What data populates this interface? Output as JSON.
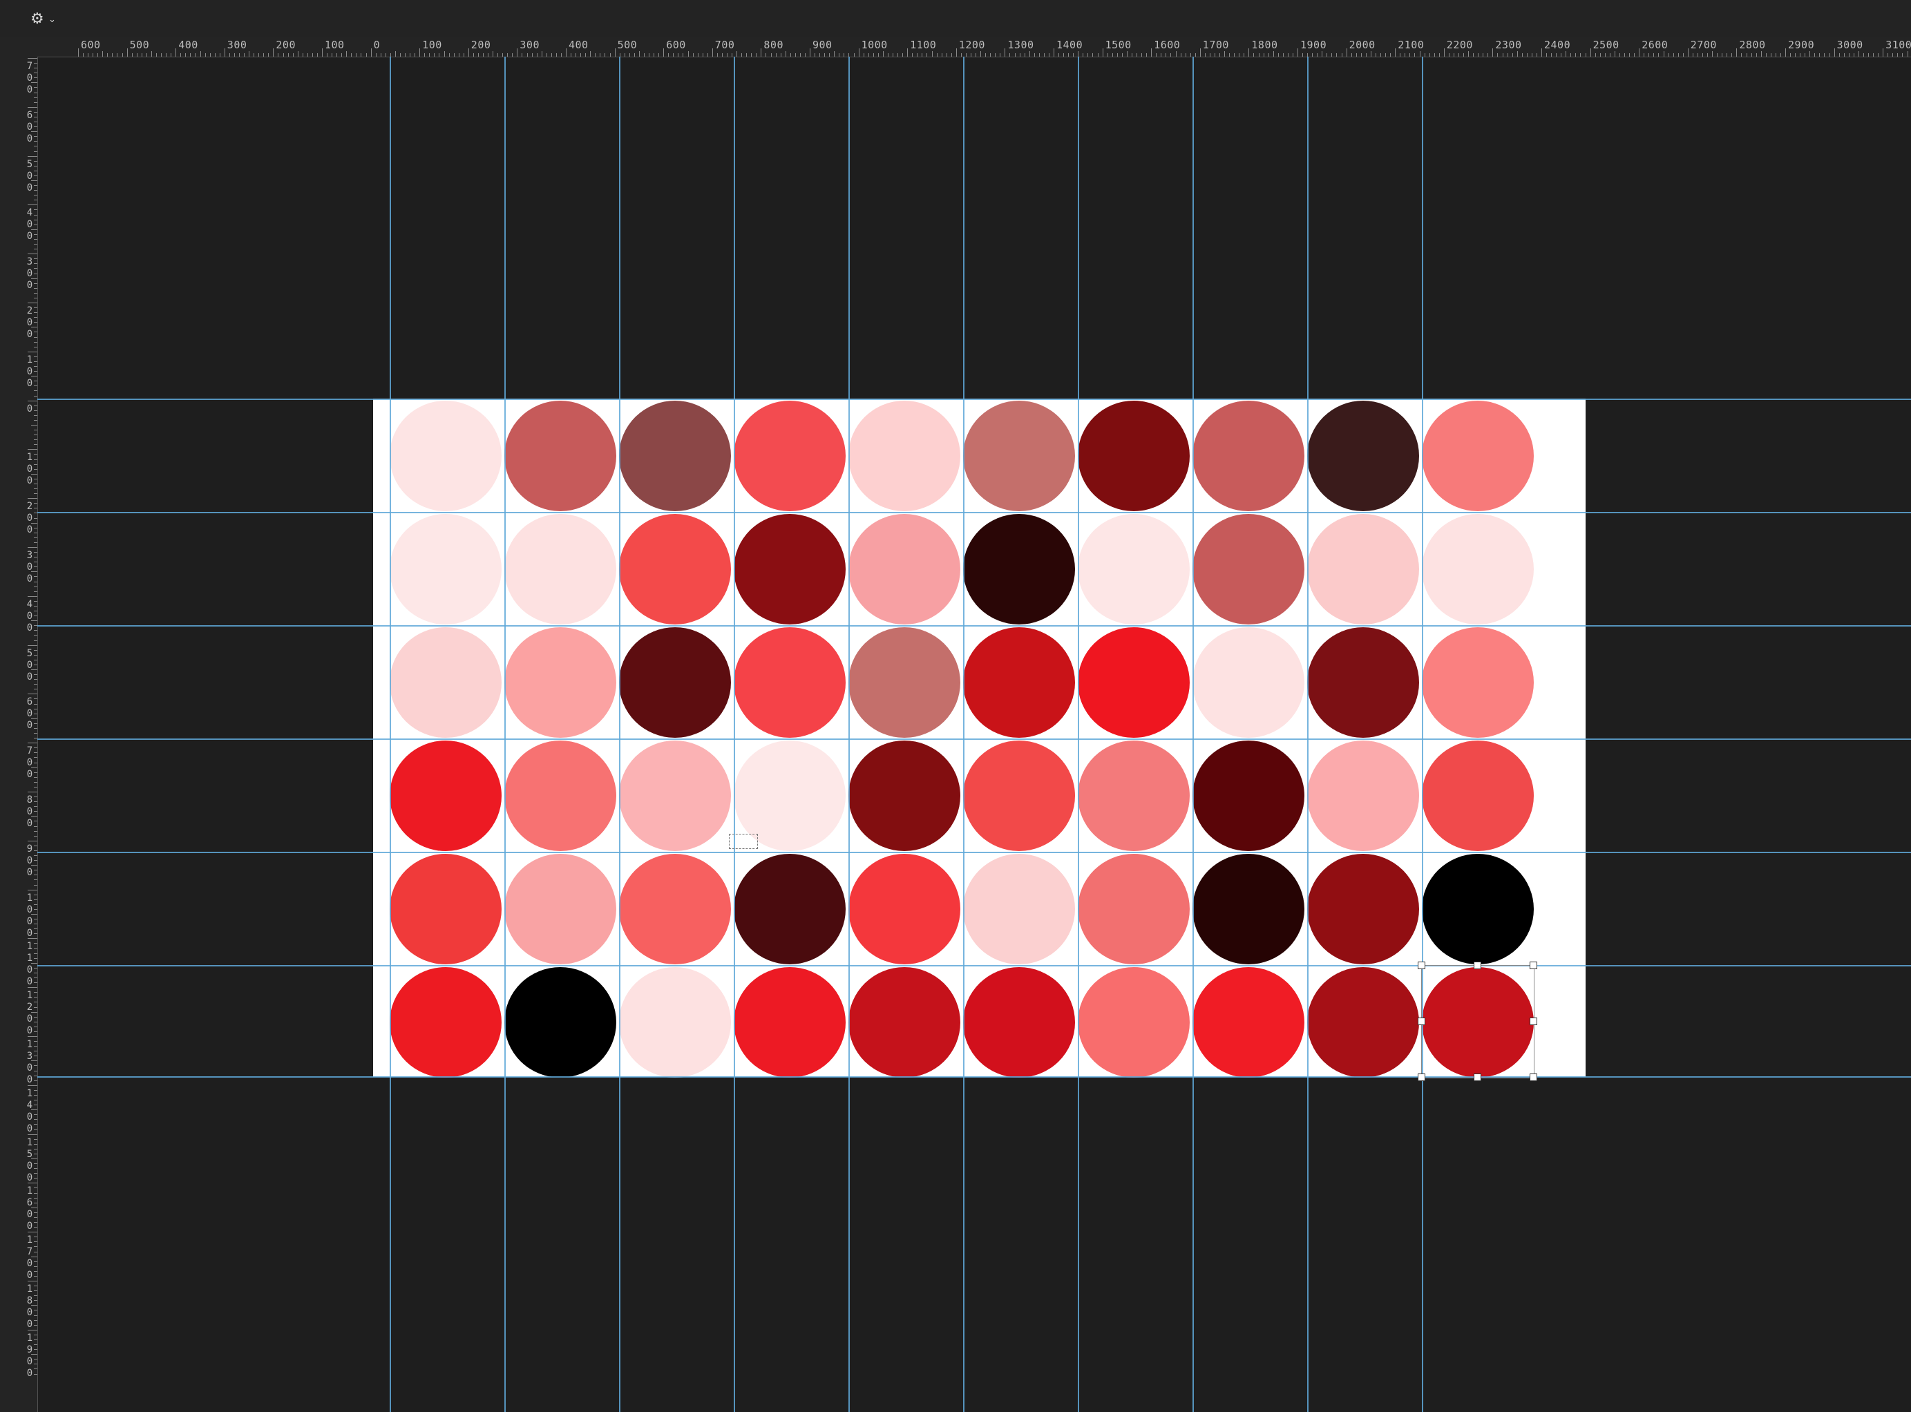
{
  "toolbar": {
    "gear_icon": "gear-icon"
  },
  "rulers": {
    "horizontal_labels": [
      "600",
      "500",
      "400",
      "300",
      "200",
      "100",
      "0",
      "100",
      "200",
      "300",
      "400",
      "500",
      "600",
      "700",
      "800",
      "900",
      "1000",
      "1100",
      "1200",
      "1300",
      "1400",
      "1500",
      "1600",
      "1700",
      "1800",
      "1900",
      "2000",
      "2100",
      "2200",
      "2300",
      "2400",
      "2500",
      "2600",
      "2700",
      "2800",
      "2900",
      "3000",
      "3100"
    ],
    "vertical_labels": [
      "700",
      "600",
      "500",
      "400",
      "300",
      "200",
      "100",
      "0",
      "100",
      "200",
      "300",
      "400",
      "500",
      "600",
      "700",
      "800",
      "900",
      "1000",
      "1100",
      "1200",
      "1300",
      "1400",
      "1500",
      "1600",
      "1700",
      "1800",
      "1900"
    ]
  },
  "artboard": {
    "background": "#ffffff",
    "guide_color": "#5fa8d8",
    "avatar_rows": [
      [
        "#fde4e4",
        "#c65a5a",
        "#8b4747",
        "#f34b50",
        "#fdd0d0",
        "#c46f6b",
        "#7e0d0f",
        "#c85b5b",
        "#3a1b1b",
        "#f77a7a"
      ],
      [
        "#fde7e7",
        "#fde1e1",
        "#f34a4a",
        "#8a0e12",
        "#f7a0a3",
        "#2a0606",
        "#fde6e6",
        "#c65a5a",
        "#fbcaca",
        "#fde2e2"
      ],
      [
        "#fbd2d2",
        "#fba2a2",
        "#5d0d10",
        "#f54248",
        "#c46f6b",
        "#c91318",
        "#ef1620",
        "#fde2e2",
        "#7c1014",
        "#fa8080"
      ],
      [
        "#ed1a23",
        "#f77272",
        "#fbb2b4",
        "#fde8e8",
        "#820e10",
        "#f24949",
        "#f37a7b",
        "#5a0508",
        "#fbaaac",
        "#f04a4b"
      ],
      [
        "#f03a3a",
        "#f9a3a4",
        "#f76060",
        "#4a0b0e",
        "#f4373c",
        "#fbd0d0",
        "#f27070",
        "#260404",
        "#910e12",
        "#000000"
      ],
      [
        "#ed1b22",
        "#000000",
        "#fde1e1",
        "#ed1a24",
        "#c5121b",
        "#d2101c",
        "#f86d6d",
        "#f01c25",
        "#a61016",
        "#c5121b"
      ]
    ]
  }
}
